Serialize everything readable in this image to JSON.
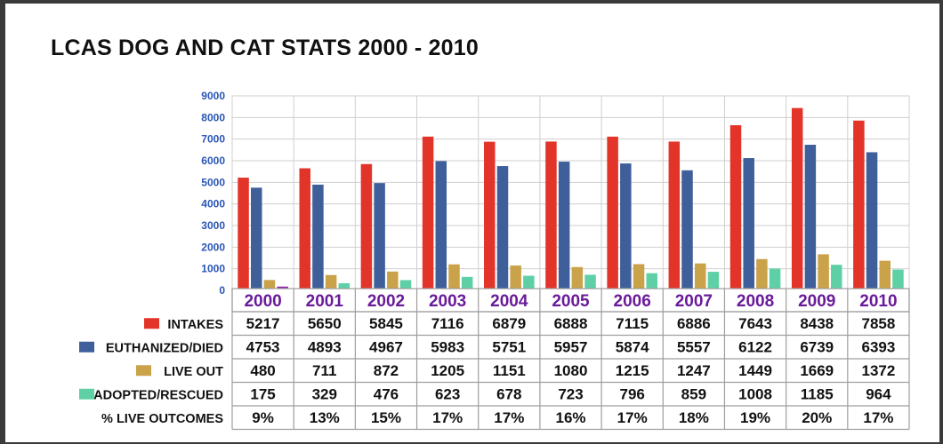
{
  "title": "LCAS DOG AND CAT STATS 2000 - 2010",
  "chart_data": {
    "type": "bar",
    "title": "LCAS DOG AND CAT STATS 2000 - 2010",
    "categories": [
      "2000",
      "2001",
      "2002",
      "2003",
      "2004",
      "2005",
      "2006",
      "2007",
      "2008",
      "2009",
      "2010"
    ],
    "ylim": [
      0,
      9000
    ],
    "yticks": [
      0,
      1000,
      2000,
      3000,
      4000,
      5000,
      6000,
      7000,
      8000,
      9000
    ],
    "grid": true,
    "legend": "bottom-table",
    "series": [
      {
        "name": "INTAKES",
        "color": "#e3342a",
        "values": [
          5217,
          5650,
          5845,
          7116,
          6879,
          6888,
          7115,
          6886,
          7643,
          8438,
          7858
        ]
      },
      {
        "name": "EUTHANIZED/DIED",
        "color": "#3f5f9a",
        "values": [
          4753,
          4893,
          4967,
          5983,
          5751,
          5957,
          5874,
          5557,
          6122,
          6739,
          6393
        ]
      },
      {
        "name": "LIVE OUT",
        "color": "#c9a24a",
        "values": [
          480,
          711,
          872,
          1205,
          1151,
          1080,
          1215,
          1247,
          1449,
          1669,
          1372
        ]
      },
      {
        "name": "ADOPTED/RESCUED",
        "color": "#5fd0a6",
        "values": [
          175,
          329,
          476,
          623,
          678,
          723,
          796,
          859,
          1008,
          1185,
          964
        ]
      }
    ],
    "display_values": {
      "INTAKES": [
        "5217",
        "5650",
        "5845",
        "7116",
        "6879",
        "6888",
        "7115",
        "6886",
        "7643",
        "8438",
        "7858"
      ],
      "EUTHANIZED/DIED": [
        "4753",
        "4893",
        "4967",
        "5983",
        "5751",
        "5957",
        "5874",
        "5557",
        "6122",
        "6739",
        "6393"
      ],
      "LIVE OUT": [
        "480",
        "711",
        "872",
        "1205",
        "1151",
        "1080",
        "1215",
        "1247",
        "1449",
        "1669",
        "1372"
      ],
      "ADOPTED/RESCUED": [
        "175",
        "329",
        "476",
        "623",
        "678",
        "723",
        "796",
        "859",
        "1008",
        "1185",
        "964"
      ]
    },
    "extra_row": {
      "name": "% LIVE OUTCOMES",
      "values": [
        "9%",
        "13%",
        "15%",
        "17%",
        "17%",
        "16%",
        "17%",
        "18%",
        "19%",
        "20%",
        "17%"
      ]
    }
  }
}
